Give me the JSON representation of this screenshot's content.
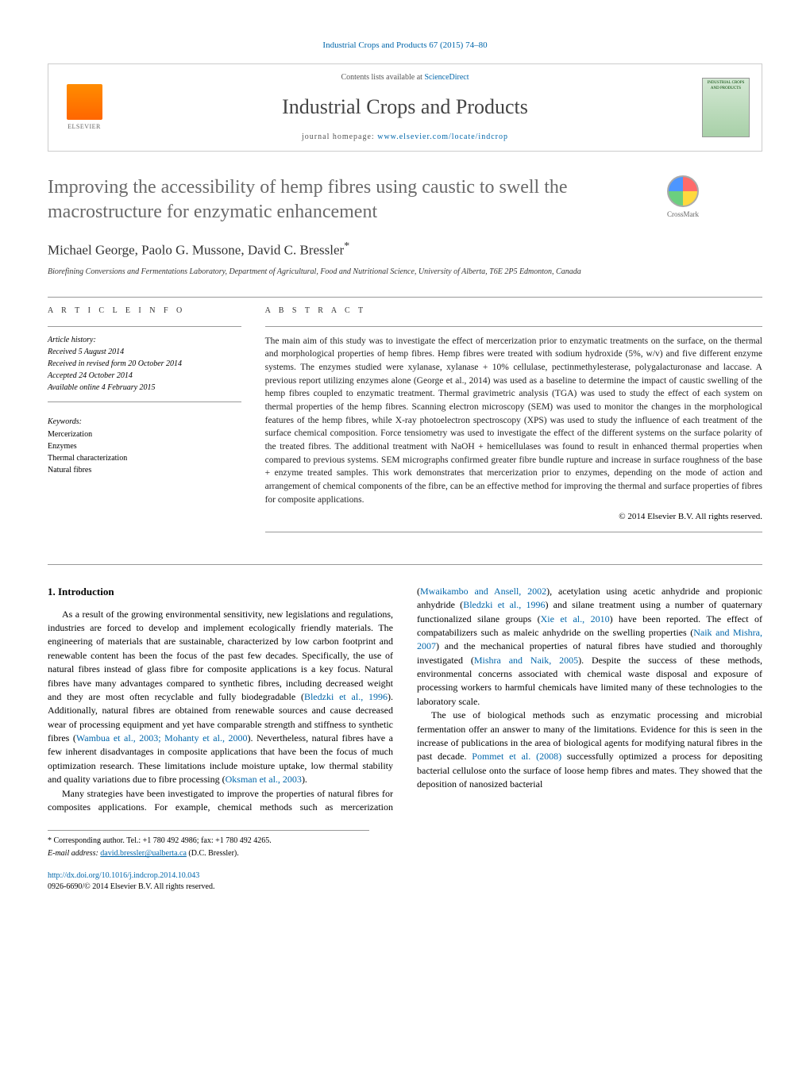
{
  "journal_ref": "Industrial Crops and Products 67 (2015) 74–80",
  "header": {
    "elsevier_label": "ELSEVIER",
    "contents_prefix": "Contents lists available at ",
    "contents_link": "ScienceDirect",
    "journal_title": "Industrial Crops and Products",
    "homepage_prefix": "journal homepage: ",
    "homepage_link": "www.elsevier.com/locate/indcrop",
    "cover_text": "INDUSTRIAL CROPS AND PRODUCTS"
  },
  "crossmark_label": "CrossMark",
  "title": "Improving the accessibility of hemp fibres using caustic to swell the macrostructure for enzymatic enhancement",
  "authors": "Michael George, Paolo G. Mussone, David C. Bressler",
  "author_marker": "*",
  "affiliation": "Biorefining Conversions and Fermentations Laboratory, Department of Agricultural, Food and Nutritional Science, University of Alberta, T6E 2P5 Edmonton, Canada",
  "info": {
    "section_label": "a r t i c l e   i n f o",
    "history_label": "Article history:",
    "received": "Received 5 August 2014",
    "revised": "Received in revised form 20 October 2014",
    "accepted": "Accepted 24 October 2014",
    "online": "Available online 4 February 2015",
    "keywords_label": "Keywords:",
    "keywords": [
      "Mercerization",
      "Enzymes",
      "Thermal characterization",
      "Natural fibres"
    ]
  },
  "abstract": {
    "section_label": "a b s t r a c t",
    "text": "The main aim of this study was to investigate the effect of mercerization prior to enzymatic treatments on the surface, on the thermal and morphological properties of hemp fibres. Hemp fibres were treated with sodium hydroxide (5%, w/v) and five different enzyme systems. The enzymes studied were xylanase, xylanase + 10% cellulase, pectinmethylesterase, polygalacturonase and laccase. A previous report utilizing enzymes alone (George et al., 2014) was used as a baseline to determine the impact of caustic swelling of the hemp fibres coupled to enzymatic treatment. Thermal gravimetric analysis (TGA) was used to study the effect of each system on thermal properties of the hemp fibres. Scanning electron microscopy (SEM) was used to monitor the changes in the morphological features of the hemp fibres, while X-ray photoelectron spectroscopy (XPS) was used to study the influence of each treatment of the surface chemical composition. Force tensiometry was used to investigate the effect of the different systems on the surface polarity of the treated fibres. The additional treatment with NaOH + hemicellulases was found to result in enhanced thermal properties when compared to previous systems. SEM micrographs confirmed greater fibre bundle rupture and increase in surface roughness of the base + enzyme treated samples. This work demonstrates that mercerization prior to enzymes, depending on the mode of action and arrangement of chemical components of the fibre, can be an effective method for improving the thermal and surface properties of fibres for composite applications.",
    "copyright": "© 2014 Elsevier B.V. All rights reserved."
  },
  "introduction": {
    "heading": "1. Introduction",
    "p1_a": "As a result of the growing environmental sensitivity, new legislations and regulations, industries are forced to develop and implement ecologically friendly materials. The engineering of materials that are sustainable, characterized by low carbon footprint and renewable content has been the focus of the past few decades. Specifically, the use of natural fibres instead of glass fibre for composite applications is a key focus. Natural fibres have many advantages compared to synthetic fibres, including decreased weight and they are most often recyclable and fully biodegradable (",
    "p1_cite1": "Bledzki et al., 1996",
    "p1_b": "). Additionally, natural fibres are obtained from renewable sources and cause decreased wear of processing equipment and yet have comparable strength and stiffness to synthetic fibres (",
    "p1_cite2": "Wambua et al., 2003; Mohanty et al., 2000",
    "p1_c": "). Nevertheless, natural fibres have a few inherent disadvantages in composite applications that have been the focus of much optimization research. These limitations include moisture uptake, ",
    "p1_d": "low thermal stability and quality variations due to fibre processing (",
    "p1_cite3": "Oksman et al., 2003",
    "p1_e": ").",
    "p2_a": "Many strategies have been investigated to improve the properties of natural fibres for composites applications. For example, chemical methods such as mercerization (",
    "p2_cite1": "Mwaikambo and Ansell, 2002",
    "p2_b": "), acetylation using acetic anhydride and propionic anhydride (",
    "p2_cite2": "Bledzki et al., 1996",
    "p2_c": ") and silane treatment using a number of quaternary functionalized silane groups (",
    "p2_cite3": "Xie et al., 2010",
    "p2_d": ") have been reported. The effect of compatabilizers such as maleic anhydride on the swelling properties (",
    "p2_cite4": "Naik and Mishra, 2007",
    "p2_e": ") and the mechanical properties of natural fibres have studied and thoroughly investigated (",
    "p2_cite5": "Mishra and Naik, 2005",
    "p2_f": "). Despite the success of these methods, environmental concerns associated with chemical waste disposal and exposure of processing workers to harmful chemicals have limited many of these technologies to the laboratory scale.",
    "p3_a": "The use of biological methods such as enzymatic processing and microbial fermentation offer an answer to many of the limitations. Evidence for this is seen in the increase of publications in the area of biological agents for modifying natural fibres in the past decade. ",
    "p3_cite1": "Pommet et al. (2008)",
    "p3_b": " successfully optimized a process for depositing bacterial cellulose onto the surface of loose hemp fibres and mates. They showed that the deposition of nanosized bacterial"
  },
  "footer": {
    "corr_label": "* Corresponding author. Tel.: +1 780 492 4986; fax: +1 780 492 4265.",
    "email_label": "E-mail address: ",
    "email": "david.bressler@ualberta.ca",
    "email_suffix": " (D.C. Bressler).",
    "doi": "http://dx.doi.org/10.1016/j.indcrop.2014.10.043",
    "issn_line": "0926-6690/© 2014 Elsevier B.V. All rights reserved."
  },
  "colors": {
    "link": "#0066aa",
    "title_gray": "#6a6a6a",
    "elsevier_orange": "#ff7700"
  }
}
